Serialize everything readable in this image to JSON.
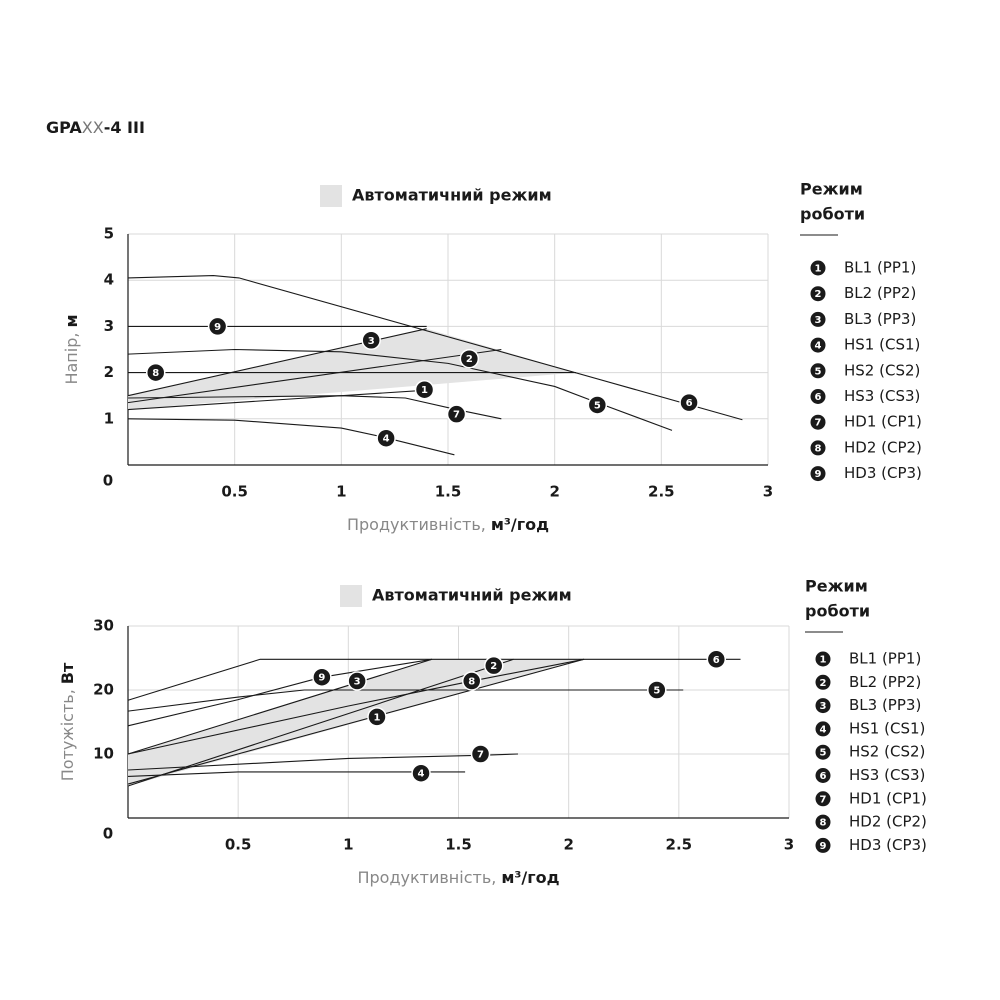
{
  "header": {
    "prefix": "GPA",
    "placeholder": "XX",
    "suffix": "-4 III"
  },
  "chart_data": [
    {
      "type": "line",
      "auto_label": "Автоматичний режим",
      "ylabel": "Напір,",
      "ylabel_unit": "м",
      "xlabel": "Продуктивність,",
      "xlabel_unit": "м³/год",
      "legend_title": [
        "Режим",
        "роботи"
      ],
      "grid": true,
      "xlim": [
        0,
        3
      ],
      "xticks": [
        0,
        0.5,
        1,
        1.5,
        2,
        2.5,
        3
      ],
      "ylim": [
        0,
        5
      ],
      "yticks": [
        1,
        2,
        3,
        4,
        5
      ],
      "auto_region": {
        "color": "#e3e3e3",
        "x": [
          0,
          0,
          1.4,
          2.1
        ],
        "values": [
          1.2,
          1.5,
          2.95,
          2.0
        ]
      },
      "series": [
        {
          "name": "BL1 (PP1)",
          "badge": "1",
          "x": [
            0,
            1.4
          ],
          "values": [
            1.2,
            1.62
          ],
          "marker": [
            1.39,
            1.63
          ]
        },
        {
          "name": "BL2 (PP2)",
          "badge": "2",
          "x": [
            0,
            1.75
          ],
          "values": [
            1.35,
            2.5
          ],
          "marker": [
            1.6,
            2.3
          ]
        },
        {
          "name": "BL3 (PP3)",
          "badge": "3",
          "x": [
            0,
            1.4
          ],
          "values": [
            1.5,
            2.95
          ],
          "marker": [
            1.14,
            2.7
          ]
        },
        {
          "name": "HS1 (CS1)",
          "badge": "4",
          "x": [
            0,
            0.5,
            1,
            1.2,
            1.53
          ],
          "values": [
            1.0,
            0.97,
            0.8,
            0.6,
            0.22
          ],
          "marker": [
            1.21,
            0.58
          ]
        },
        {
          "name": "HS2 (CS2)",
          "badge": "5",
          "x": [
            0,
            0.5,
            1,
            1.5,
            2,
            2.2,
            2.55
          ],
          "values": [
            2.4,
            2.5,
            2.45,
            2.2,
            1.7,
            1.35,
            0.75
          ],
          "marker": [
            2.2,
            1.3
          ]
        },
        {
          "name": "HS3 (CS3)",
          "badge": "6",
          "x": [
            0,
            0.4,
            0.52,
            2.88
          ],
          "values": [
            4.05,
            4.1,
            4.05,
            0.98
          ],
          "marker": [
            2.63,
            1.35
          ]
        },
        {
          "name": "HD1 (CP1)",
          "badge": "7",
          "x": [
            0,
            1,
            1.3,
            1.54,
            1.75
          ],
          "values": [
            1.45,
            1.5,
            1.45,
            1.2,
            1.0
          ],
          "marker": [
            1.54,
            1.1
          ]
        },
        {
          "name": "HD2 (CP2)",
          "badge": "8",
          "x": [
            0,
            2.1
          ],
          "values": [
            2,
            2
          ],
          "marker": [
            0.13,
            2
          ]
        },
        {
          "name": "HD3 (CP3)",
          "badge": "9",
          "x": [
            0,
            1.4
          ],
          "values": [
            3,
            3
          ],
          "marker": [
            0.42,
            3
          ]
        }
      ]
    },
    {
      "type": "line",
      "auto_label": "Автоматичний режим",
      "ylabel": "Потужість,",
      "ylabel_unit": "Вт",
      "xlabel": "Продуктивність,",
      "xlabel_unit": "м³/год",
      "legend_title": [
        "Режим",
        "роботи"
      ],
      "grid": true,
      "xlim": [
        0,
        3
      ],
      "xticks": [
        0,
        0.5,
        1,
        1.5,
        2,
        2.5,
        3
      ],
      "ylim": [
        0,
        30
      ],
      "yticks": [
        10,
        20,
        30
      ],
      "auto_region": {
        "color": "#e3e3e3",
        "x": [
          0,
          0,
          1.38,
          2.07
        ],
        "values": [
          5,
          10,
          24.8,
          24.8
        ]
      },
      "series": [
        {
          "name": "BL1 (PP1)",
          "badge": "1",
          "x": [
            0,
            2.07
          ],
          "values": [
            5.3,
            24.8
          ],
          "marker": [
            1.13,
            15.8
          ]
        },
        {
          "name": "BL2 (PP2)",
          "badge": "2",
          "x": [
            0,
            1.75
          ],
          "values": [
            5,
            24.8
          ],
          "marker": [
            1.66,
            23.8
          ]
        },
        {
          "name": "BL3 (PP3)",
          "badge": "3",
          "x": [
            0,
            1.38
          ],
          "values": [
            10,
            24.8
          ],
          "marker": [
            1.04,
            21.4
          ]
        },
        {
          "name": "HS1 (CS1)",
          "badge": "4",
          "x": [
            0,
            0.5,
            1.53
          ],
          "values": [
            6.5,
            7.2,
            7.2
          ],
          "marker": [
            1.33,
            7
          ]
        },
        {
          "name": "HS2 (CS2)",
          "badge": "5",
          "x": [
            0,
            0.5,
            0.8,
            2.52
          ],
          "values": [
            16.7,
            18.9,
            20,
            20
          ],
          "marker": [
            2.4,
            20
          ]
        },
        {
          "name": "HS3 (CS3)",
          "badge": "6",
          "x": [
            0,
            0.6,
            2.78
          ],
          "values": [
            18.4,
            24.8,
            24.8
          ],
          "marker": [
            2.67,
            24.8
          ]
        },
        {
          "name": "HD1 (CP1)",
          "badge": "7",
          "x": [
            0,
            1,
            1.6,
            1.77
          ],
          "values": [
            7.5,
            9.3,
            9.8,
            10
          ],
          "marker": [
            1.6,
            10
          ]
        },
        {
          "name": "HD2 (CP2)",
          "badge": "8",
          "x": [
            0,
            1,
            1.56,
            2.07
          ],
          "values": [
            10,
            17.5,
            21.4,
            24.8
          ],
          "marker": [
            1.56,
            21.4
          ]
        },
        {
          "name": "HD3 (CP3)",
          "badge": "9",
          "x": [
            0,
            0.5,
            0.88,
            1.38
          ],
          "values": [
            14.4,
            18.5,
            22,
            24.8
          ],
          "marker": [
            0.88,
            22
          ]
        }
      ]
    }
  ]
}
